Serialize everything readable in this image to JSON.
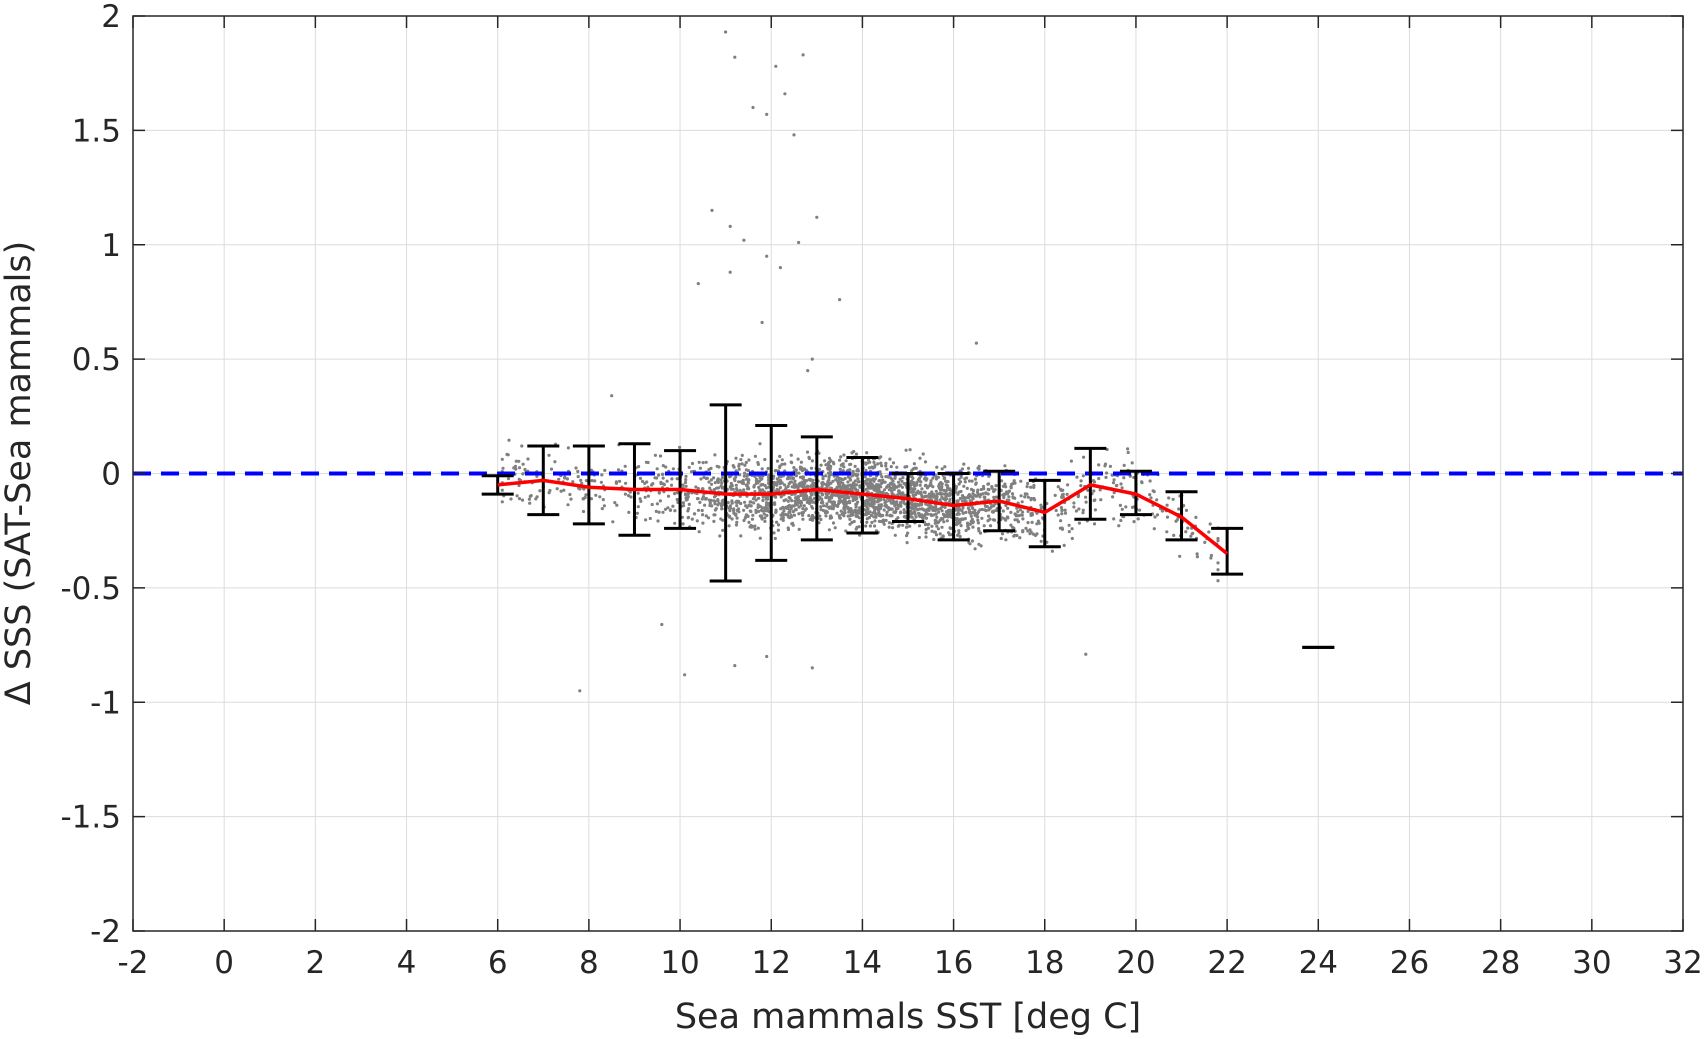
{
  "chart_data": {
    "type": "scatter",
    "title": "",
    "xlabel": "Sea mammals SST [deg C]",
    "ylabel": "Δ SSS (SAT-Sea mammals)",
    "xlim": [
      -2,
      32
    ],
    "ylim": [
      -2,
      2
    ],
    "xticks": [
      "-2",
      "0",
      "2",
      "4",
      "6",
      "8",
      "10",
      "12",
      "14",
      "16",
      "18",
      "20",
      "22",
      "24",
      "26",
      "28",
      "30",
      "32"
    ],
    "yticks": [
      "2",
      "1.5",
      "1",
      "0.5",
      "0",
      "-0.5",
      "-1",
      "-1.5",
      "-2"
    ],
    "grid": true,
    "reference_line": {
      "y": 0,
      "style": "dashed",
      "color": "#0000ff"
    },
    "series": [
      {
        "kind": "mean_line",
        "color": "#ff0000",
        "x": [
          6,
          7,
          8,
          9,
          10,
          11,
          12,
          13,
          14,
          15,
          16,
          17,
          18,
          19,
          20,
          21,
          22
        ],
        "y": [
          -0.05,
          -0.03,
          -0.06,
          -0.07,
          -0.07,
          -0.09,
          -0.09,
          -0.07,
          -0.09,
          -0.11,
          -0.14,
          -0.12,
          -0.17,
          -0.05,
          -0.09,
          -0.19,
          -0.35
        ]
      },
      {
        "kind": "error_bars",
        "color": "#000000",
        "x": [
          6,
          7,
          8,
          9,
          10,
          11,
          12,
          13,
          14,
          15,
          16,
          17,
          18,
          19,
          20,
          21,
          22,
          24
        ],
        "low": [
          -0.09,
          -0.18,
          -0.22,
          -0.27,
          -0.24,
          -0.47,
          -0.38,
          -0.29,
          -0.26,
          -0.21,
          -0.29,
          -0.25,
          -0.32,
          -0.2,
          -0.18,
          -0.29,
          -0.44,
          -0.76
        ],
        "high": [
          -0.01,
          0.12,
          0.12,
          0.13,
          0.1,
          0.3,
          0.21,
          0.16,
          0.07,
          0.0,
          0.0,
          0.01,
          -0.03,
          0.11,
          0.01,
          -0.08,
          -0.24,
          -0.76
        ]
      },
      {
        "kind": "scatter",
        "color": "#808080",
        "count": 2600,
        "x_range": [
          6,
          22
        ],
        "outliers_x": [
          11.0,
          11.2,
          11.6,
          11.9,
          12.1,
          12.5,
          12.7,
          13.0,
          11.1,
          12.3,
          10.7,
          12.2,
          13.5,
          11.4,
          12.9,
          11.8,
          12.6,
          16.5,
          11.9,
          12.8,
          11.1,
          10.4,
          8.5,
          9.6,
          18.9,
          12.9,
          11.9,
          11.2,
          10.1,
          7.8
        ],
        "outliers_y": [
          1.93,
          1.82,
          1.6,
          1.57,
          1.78,
          1.48,
          1.83,
          1.12,
          1.08,
          1.66,
          1.15,
          0.9,
          0.76,
          1.02,
          0.5,
          0.66,
          1.01,
          0.57,
          0.95,
          0.45,
          0.88,
          0.83,
          0.34,
          -0.66,
          -0.79,
          -0.85,
          -0.8,
          -0.84,
          -0.88,
          -0.95
        ]
      }
    ]
  }
}
